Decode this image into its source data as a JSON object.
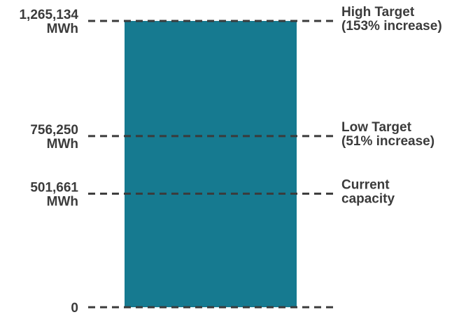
{
  "chart_data": {
    "type": "bar",
    "categories": [
      ""
    ],
    "values": [
      1265134
    ],
    "ylim": [
      0,
      1265134
    ],
    "unit": "MWh",
    "bar_color": "#167A90",
    "line_color": "#3b3b3b",
    "reference_lines": [
      {
        "value": 1265134,
        "value_label": [
          "1,265,134",
          "MWh"
        ],
        "label": [
          "High Target",
          "(153% increase)"
        ]
      },
      {
        "value": 756250,
        "value_label": [
          "756,250",
          "MWh"
        ],
        "label": [
          "Low Target",
          "(51% increase)"
        ]
      },
      {
        "value": 501661,
        "value_label": [
          "501,661",
          "MWh"
        ],
        "label": [
          "Current",
          "capacity"
        ]
      },
      {
        "value": 0,
        "value_label": [
          "0"
        ],
        "label": []
      }
    ]
  }
}
